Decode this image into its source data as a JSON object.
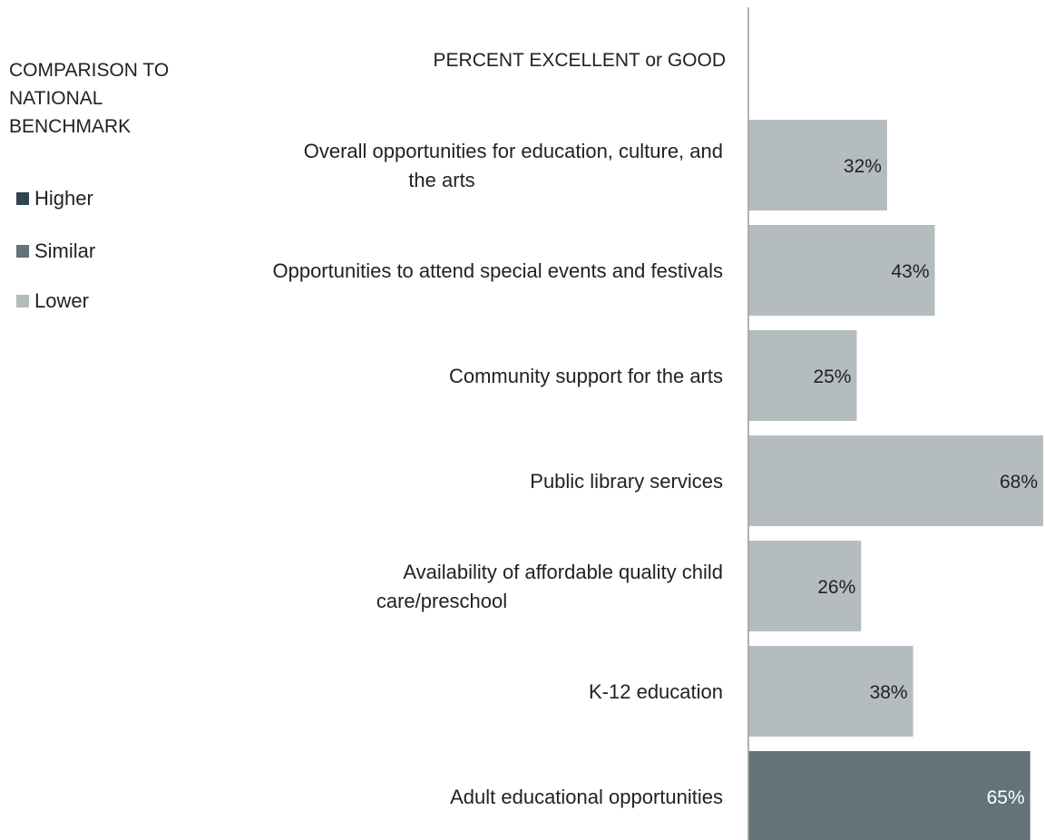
{
  "legend": {
    "title": "COMPARISON TO\nNATIONAL\nBENCHMARK",
    "items": [
      {
        "label": "Higher",
        "color": "#2f4450"
      },
      {
        "label": "Similar",
        "color": "#637379"
      },
      {
        "label": "Lower",
        "color": "#b4bcbf"
      }
    ]
  },
  "header": {
    "label": "PERCENT EXCELLENT or GOOD"
  },
  "chart_data": {
    "type": "bar",
    "orientation": "horizontal",
    "categories": [
      "Overall opportunities for education, culture, and the arts",
      "Opportunities to attend special events and festivals",
      "Community support for the arts",
      "Public library services",
      "Availability of affordable quality child care/preschool",
      "K-12 education",
      "Adult educational opportunities"
    ],
    "values": [
      32,
      43,
      25,
      68,
      26,
      38,
      65
    ],
    "value_labels": [
      "32%",
      "43%",
      "25%",
      "68%",
      "26%",
      "38%",
      "65%"
    ],
    "comparison": [
      "Lower",
      "Lower",
      "Lower",
      "Lower",
      "Lower",
      "Lower",
      "Similar"
    ],
    "xlim": [
      0,
      68
    ],
    "colors": {
      "Higher": "#2f4450",
      "Similar": "#637379",
      "Lower": "#b4bcbf"
    },
    "label_colors": {
      "Higher": "#ffffff",
      "Similar": "#ffffff",
      "Lower": "#222222"
    }
  }
}
